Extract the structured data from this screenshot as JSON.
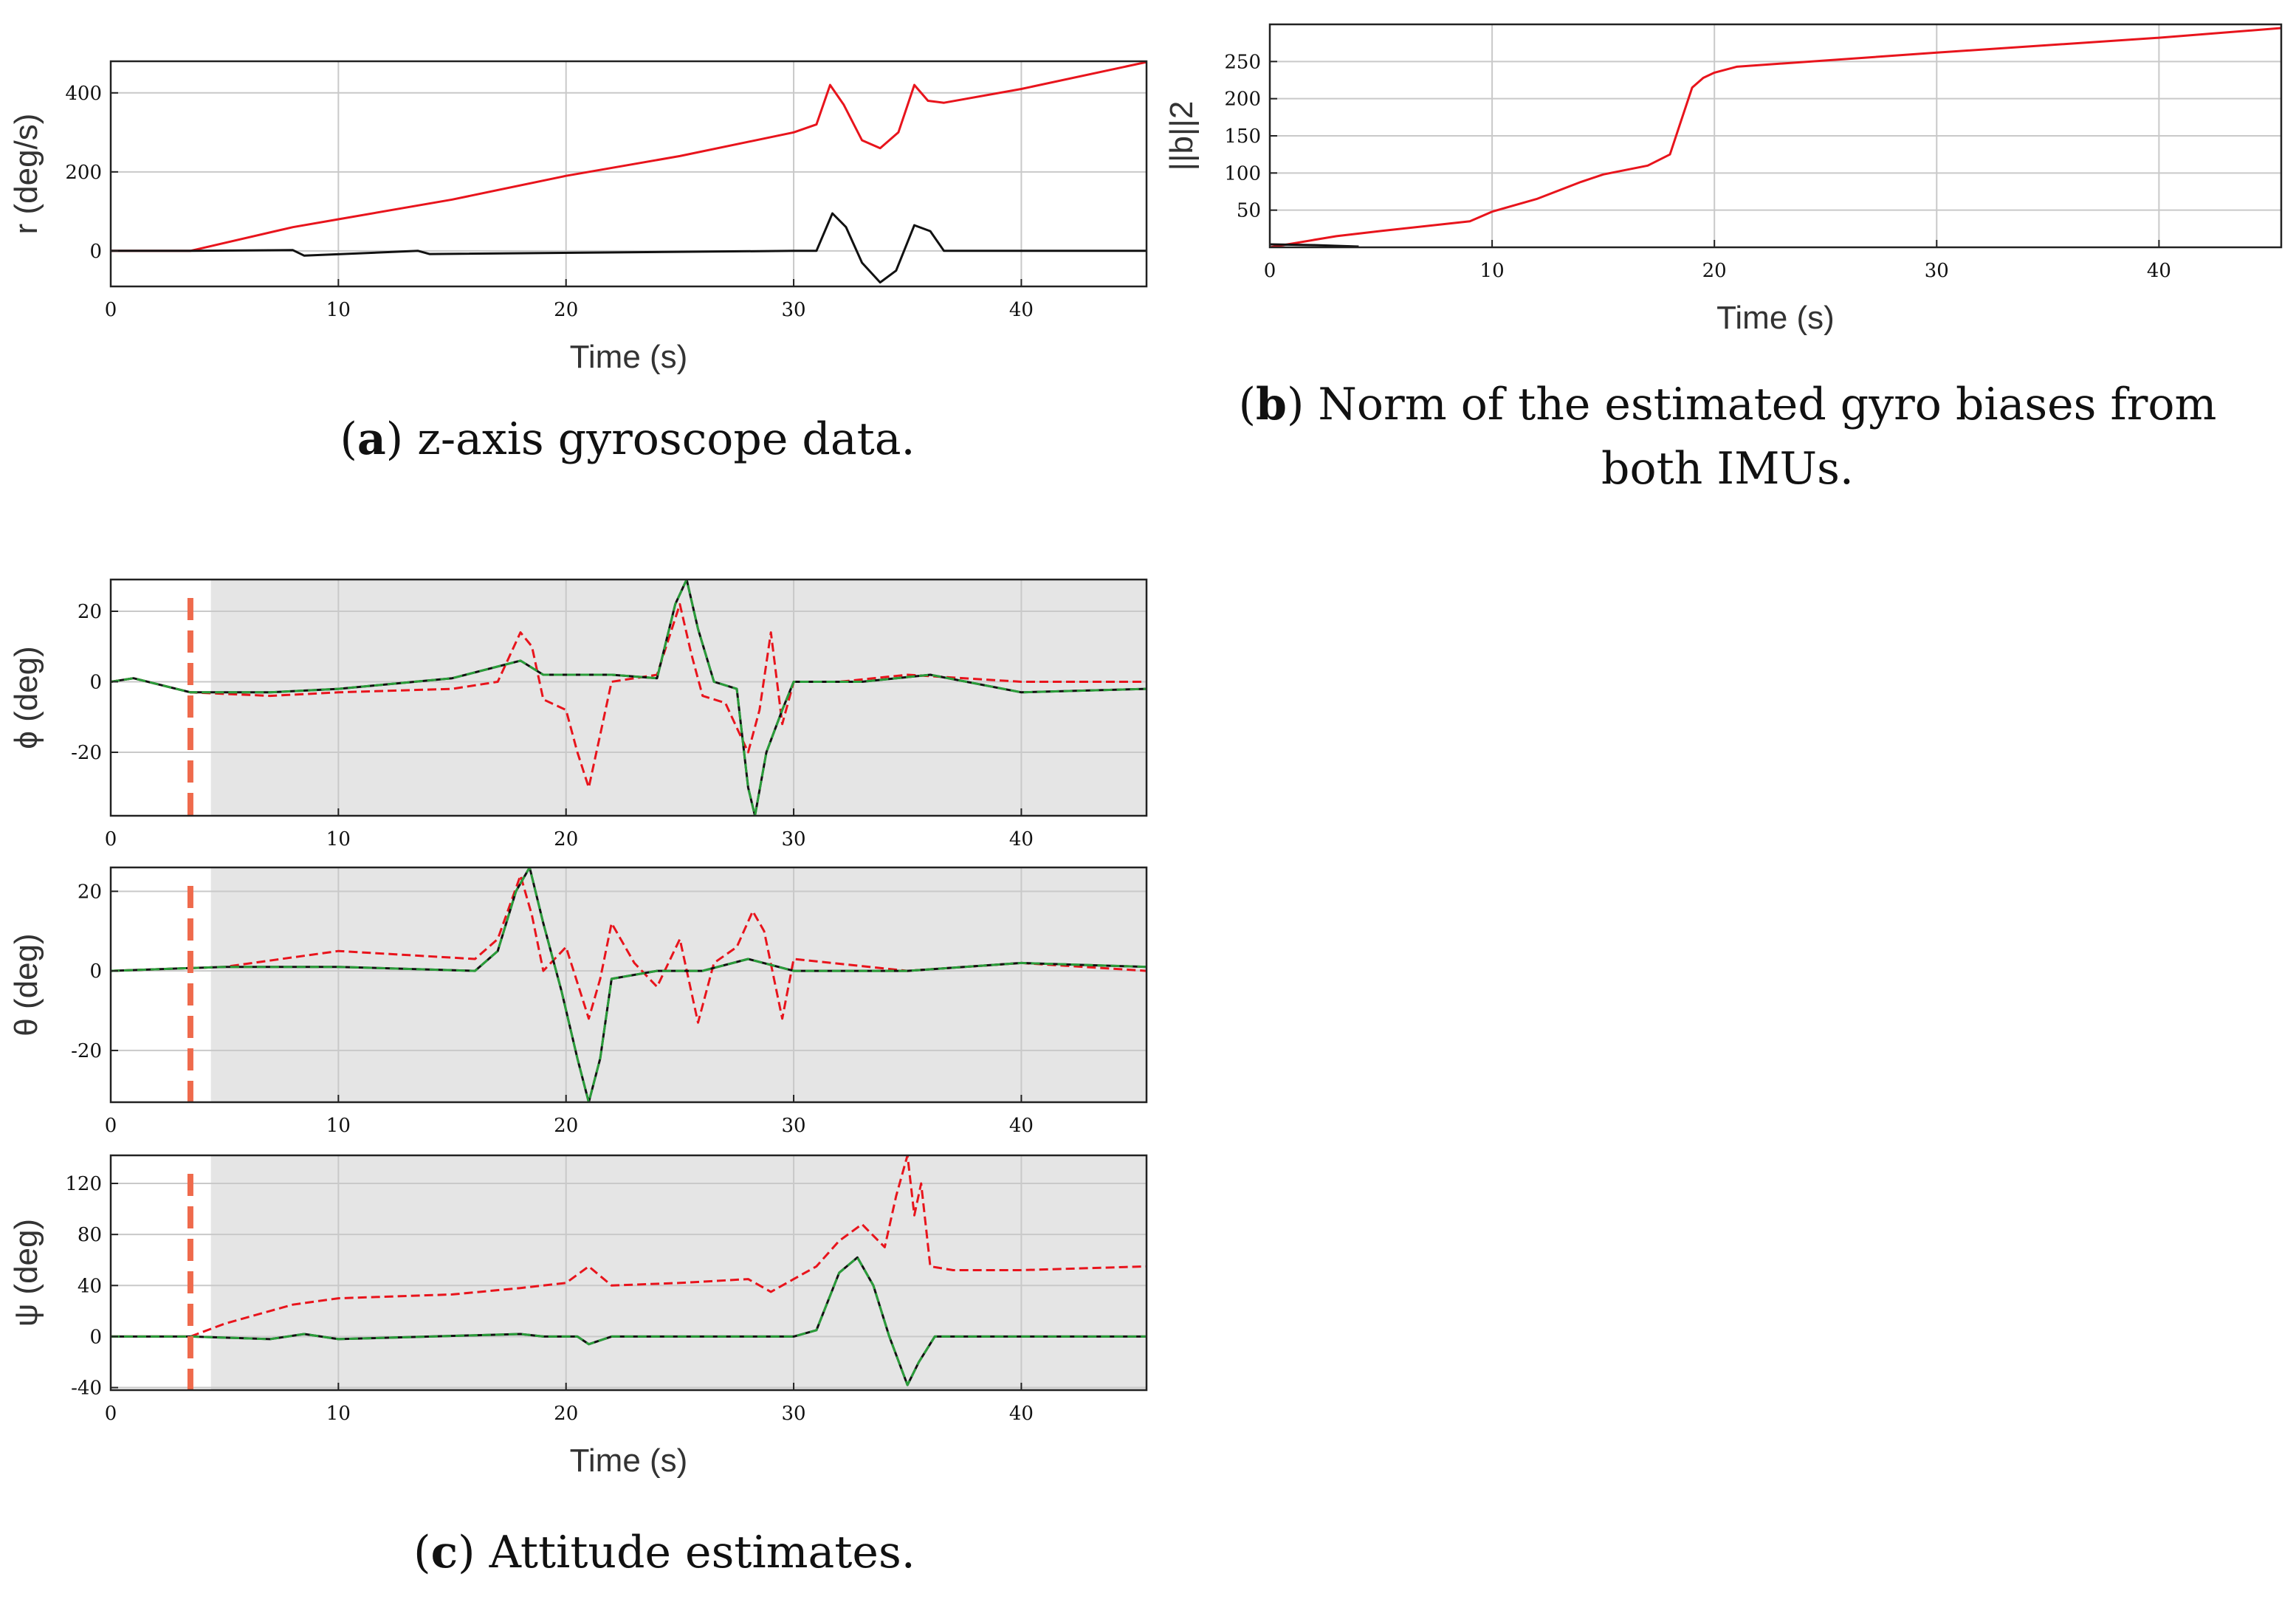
{
  "captions": {
    "a_letter": "a",
    "a_text": "z-axis gyroscope data.",
    "b_letter": "b",
    "b_text": "Norm of the estimated gyro biases from both IMUs.",
    "c_letter": "c",
    "c_text": "Attitude estimates."
  },
  "chart_data": [
    {
      "id": "a",
      "type": "line",
      "xlabel": "Time (s)",
      "ylabel": "r (deg/s)",
      "xlim": [
        0,
        45.5
      ],
      "ylim": [
        -90,
        480
      ],
      "xticks": [
        0,
        10,
        20,
        30,
        40
      ],
      "yticks": [
        0,
        200,
        400
      ],
      "grid": true,
      "series": [
        {
          "color": "#e8141c",
          "dash": "solid",
          "x": [
            0,
            3.5,
            5,
            8,
            10,
            15,
            20,
            25,
            30,
            31,
            31.6,
            32.2,
            33,
            33.8,
            34.6,
            35.3,
            35.9,
            36.6,
            40,
            45.5
          ],
          "y": [
            0,
            0,
            20,
            60,
            80,
            130,
            190,
            240,
            300,
            320,
            420,
            370,
            280,
            260,
            300,
            420,
            380,
            375,
            410,
            478
          ]
        },
        {
          "color": "#111111",
          "dash": "solid",
          "x": [
            0,
            3.5,
            8,
            8.5,
            13.5,
            14,
            30,
            31,
            31.7,
            32.3,
            33,
            33.8,
            34.5,
            35.3,
            36,
            36.6,
            40,
            45.5
          ],
          "y": [
            0,
            0,
            2,
            -12,
            0,
            -8,
            0,
            0,
            95,
            60,
            -30,
            -80,
            -50,
            65,
            50,
            0,
            0,
            0
          ]
        }
      ]
    },
    {
      "id": "b",
      "type": "line",
      "xlabel": "Time (s)",
      "ylabel": "||b||2",
      "xlim": [
        0,
        45.5
      ],
      "ylim": [
        0,
        300
      ],
      "xticks": [
        0,
        10,
        20,
        30,
        40
      ],
      "yticks": [
        50,
        100,
        150,
        200,
        250
      ],
      "grid": true,
      "series": [
        {
          "color": "#e8141c",
          "dash": "solid",
          "x": [
            0,
            1,
            2,
            3,
            5,
            9,
            10,
            12,
            14,
            15,
            17,
            18,
            18.5,
            19,
            19.5,
            20,
            21,
            30,
            40,
            45.5
          ],
          "y": [
            0,
            5,
            10,
            15,
            22,
            35,
            48,
            65,
            88,
            98,
            110,
            125,
            170,
            215,
            228,
            235,
            243,
            262,
            282,
            295
          ]
        },
        {
          "color": "#111111",
          "dash": "solid",
          "x": [
            0,
            2,
            4
          ],
          "y": [
            4,
            3,
            1
          ]
        }
      ]
    },
    {
      "id": "c1",
      "type": "line",
      "xlabel": "",
      "ylabel": "ϕ (deg)",
      "xlim": [
        0,
        45.5
      ],
      "ylim": [
        -38,
        29
      ],
      "xticks": [
        0,
        10,
        20,
        30,
        40
      ],
      "yticks": [
        -20,
        0,
        20
      ],
      "grid": true,
      "shade_from": 4.4,
      "vline": 3.5,
      "series": [
        {
          "color": "#e8141c",
          "dash": "dashed",
          "x": [
            0,
            1,
            3.5,
            7,
            10,
            15,
            17,
            18,
            18.5,
            19,
            20,
            20.5,
            21,
            21.5,
            22,
            24,
            25,
            25.5,
            26,
            27,
            28,
            28.5,
            29,
            29.5,
            30,
            32,
            35,
            40,
            45.5
          ],
          "y": [
            0,
            1,
            -3,
            -4,
            -3,
            -2,
            0,
            14,
            10,
            -5,
            -8,
            -20,
            -30,
            -15,
            0,
            2,
            22,
            8,
            -4,
            -6,
            -20,
            -8,
            14,
            -12,
            0,
            0,
            2,
            0,
            0
          ]
        },
        {
          "color": "#111111",
          "dash": "solid",
          "x": [
            0,
            1,
            3.5,
            7,
            10,
            15,
            18,
            19,
            22,
            24,
            24.8,
            25.3,
            25.8,
            26.5,
            27.5,
            28,
            28.3,
            28.8,
            29.5,
            30,
            33,
            36,
            40,
            45.5
          ],
          "y": [
            0,
            1,
            -3,
            -3,
            -2,
            1,
            6,
            2,
            2,
            1,
            22,
            29,
            15,
            0,
            -2,
            -30,
            -38,
            -20,
            -8,
            0,
            0,
            2,
            -3,
            -2
          ]
        },
        {
          "color": "#2a9d3a",
          "dash": "dashed",
          "x": [
            0,
            1,
            3.5,
            7,
            10,
            15,
            18,
            19,
            22,
            24,
            24.8,
            25.3,
            25.8,
            26.5,
            27.5,
            28,
            28.3,
            28.8,
            29.5,
            30,
            33,
            36,
            40,
            45.5
          ],
          "y": [
            0,
            1,
            -3,
            -3,
            -2,
            1,
            6,
            2,
            2,
            1,
            22,
            29,
            15,
            0,
            -2,
            -30,
            -38,
            -20,
            -8,
            0,
            0,
            2,
            -3,
            -2
          ]
        }
      ]
    },
    {
      "id": "c2",
      "type": "line",
      "xlabel": "",
      "ylabel": "θ (deg)",
      "xlim": [
        0,
        45.5
      ],
      "ylim": [
        -33,
        26
      ],
      "xticks": [
        0,
        10,
        20,
        30,
        40
      ],
      "yticks": [
        -20,
        0,
        20
      ],
      "grid": true,
      "shade_from": 4.4,
      "vline": 3.5,
      "series": [
        {
          "color": "#e8141c",
          "dash": "dashed",
          "x": [
            0,
            5,
            10,
            16,
            17,
            18,
            18.5,
            19,
            20,
            21,
            21.5,
            22,
            23,
            24,
            25,
            25.8,
            26.5,
            27.5,
            28.2,
            28.7,
            29.5,
            30,
            35,
            40,
            45.5
          ],
          "y": [
            0,
            1,
            5,
            3,
            8,
            24,
            14,
            0,
            6,
            -12,
            -2,
            12,
            2,
            -4,
            8,
            -13,
            2,
            6,
            15,
            10,
            -12,
            3,
            0,
            2,
            0
          ]
        },
        {
          "color": "#111111",
          "dash": "solid",
          "x": [
            0,
            5,
            10,
            16,
            17,
            17.8,
            18.4,
            19,
            19.8,
            20.5,
            21,
            21.5,
            22,
            24,
            26,
            28,
            30,
            35,
            40,
            45.5
          ],
          "y": [
            0,
            1,
            1,
            0,
            5,
            20,
            26,
            12,
            -5,
            -22,
            -33,
            -22,
            -2,
            0,
            0,
            3,
            0,
            0,
            2,
            1
          ]
        },
        {
          "color": "#2a9d3a",
          "dash": "dashed",
          "x": [
            0,
            5,
            10,
            16,
            17,
            17.8,
            18.4,
            19,
            19.8,
            20.5,
            21,
            21.5,
            22,
            24,
            26,
            28,
            30,
            35,
            40,
            45.5
          ],
          "y": [
            0,
            1,
            1,
            0,
            5,
            20,
            26,
            12,
            -5,
            -22,
            -33,
            -22,
            -2,
            0,
            0,
            3,
            0,
            0,
            2,
            1
          ]
        }
      ]
    },
    {
      "id": "c3",
      "type": "line",
      "xlabel": "Time (s)",
      "ylabel": "ψ (deg)",
      "xlim": [
        0,
        45.5
      ],
      "ylim": [
        -42,
        142
      ],
      "xticks": [
        0,
        10,
        20,
        30,
        40
      ],
      "yticks": [
        -40,
        0,
        40,
        80,
        120
      ],
      "grid": true,
      "shade_from": 4.4,
      "vline": 3.5,
      "series": [
        {
          "color": "#e8141c",
          "dash": "dashed",
          "x": [
            0,
            3.5,
            5,
            7,
            8,
            10,
            15,
            18,
            20,
            21,
            22,
            25,
            28,
            29,
            30,
            31,
            32,
            33,
            34,
            34.5,
            35,
            35.3,
            35.6,
            36,
            37,
            40,
            45.5
          ],
          "y": [
            0,
            0,
            10,
            20,
            25,
            30,
            33,
            38,
            42,
            55,
            40,
            42,
            45,
            35,
            45,
            55,
            75,
            88,
            70,
            110,
            142,
            95,
            120,
            55,
            52,
            52,
            55
          ]
        },
        {
          "color": "#111111",
          "dash": "solid",
          "x": [
            0,
            3.5,
            7,
            8.5,
            10,
            18,
            19,
            20.5,
            21,
            22,
            30,
            31,
            32,
            32.8,
            33.5,
            34.2,
            35,
            35.5,
            36.2,
            37,
            40,
            45.5
          ],
          "y": [
            0,
            0,
            -2,
            2,
            -2,
            2,
            0,
            0,
            -6,
            0,
            0,
            5,
            50,
            62,
            40,
            0,
            -38,
            -20,
            0,
            0,
            0,
            0
          ]
        },
        {
          "color": "#2a9d3a",
          "dash": "dashed",
          "x": [
            0,
            3.5,
            7,
            8.5,
            10,
            18,
            19,
            20.5,
            21,
            22,
            30,
            31,
            32,
            32.8,
            33.5,
            34.2,
            35,
            35.5,
            36.2,
            37,
            40,
            45.5
          ],
          "y": [
            0,
            0,
            -2,
            2,
            -2,
            2,
            0,
            0,
            -6,
            0,
            0,
            5,
            50,
            62,
            40,
            0,
            -38,
            -20,
            0,
            0,
            0,
            0
          ]
        }
      ]
    }
  ]
}
